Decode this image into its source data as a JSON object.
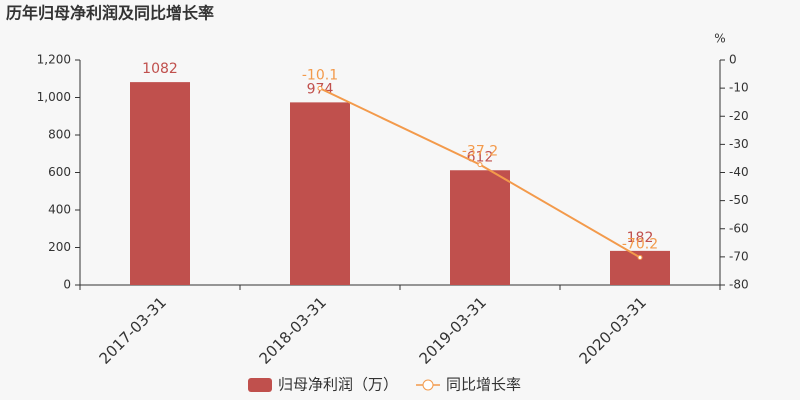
{
  "chart_data": {
    "type": "bar_line",
    "title": "历年归母净利润及同比增长率",
    "categories": [
      "2017-03-31",
      "2018-03-31",
      "2019-03-31",
      "2020-03-31"
    ],
    "series": [
      {
        "name": "归母净利润（万）",
        "type": "bar",
        "color": "#c0504d",
        "values": [
          1082,
          974,
          612,
          182
        ]
      },
      {
        "name": "同比增长率",
        "type": "line",
        "axis": "y2",
        "color": "#f39a4b",
        "values": [
          null,
          -10.1,
          -37.2,
          -70.2
        ]
      }
    ],
    "ylim": [
      0,
      1200
    ],
    "yticks": [
      0,
      200,
      400,
      600,
      800,
      {
        "value": 1000,
        "label": "1,000"
      },
      {
        "value": 1200,
        "label": "1,200"
      }
    ],
    "y2label": "%",
    "y2lim": [
      -80,
      0
    ],
    "y2ticks": [
      -80,
      -70,
      -60,
      -50,
      -40,
      -30,
      -20,
      -10,
      0
    ]
  }
}
